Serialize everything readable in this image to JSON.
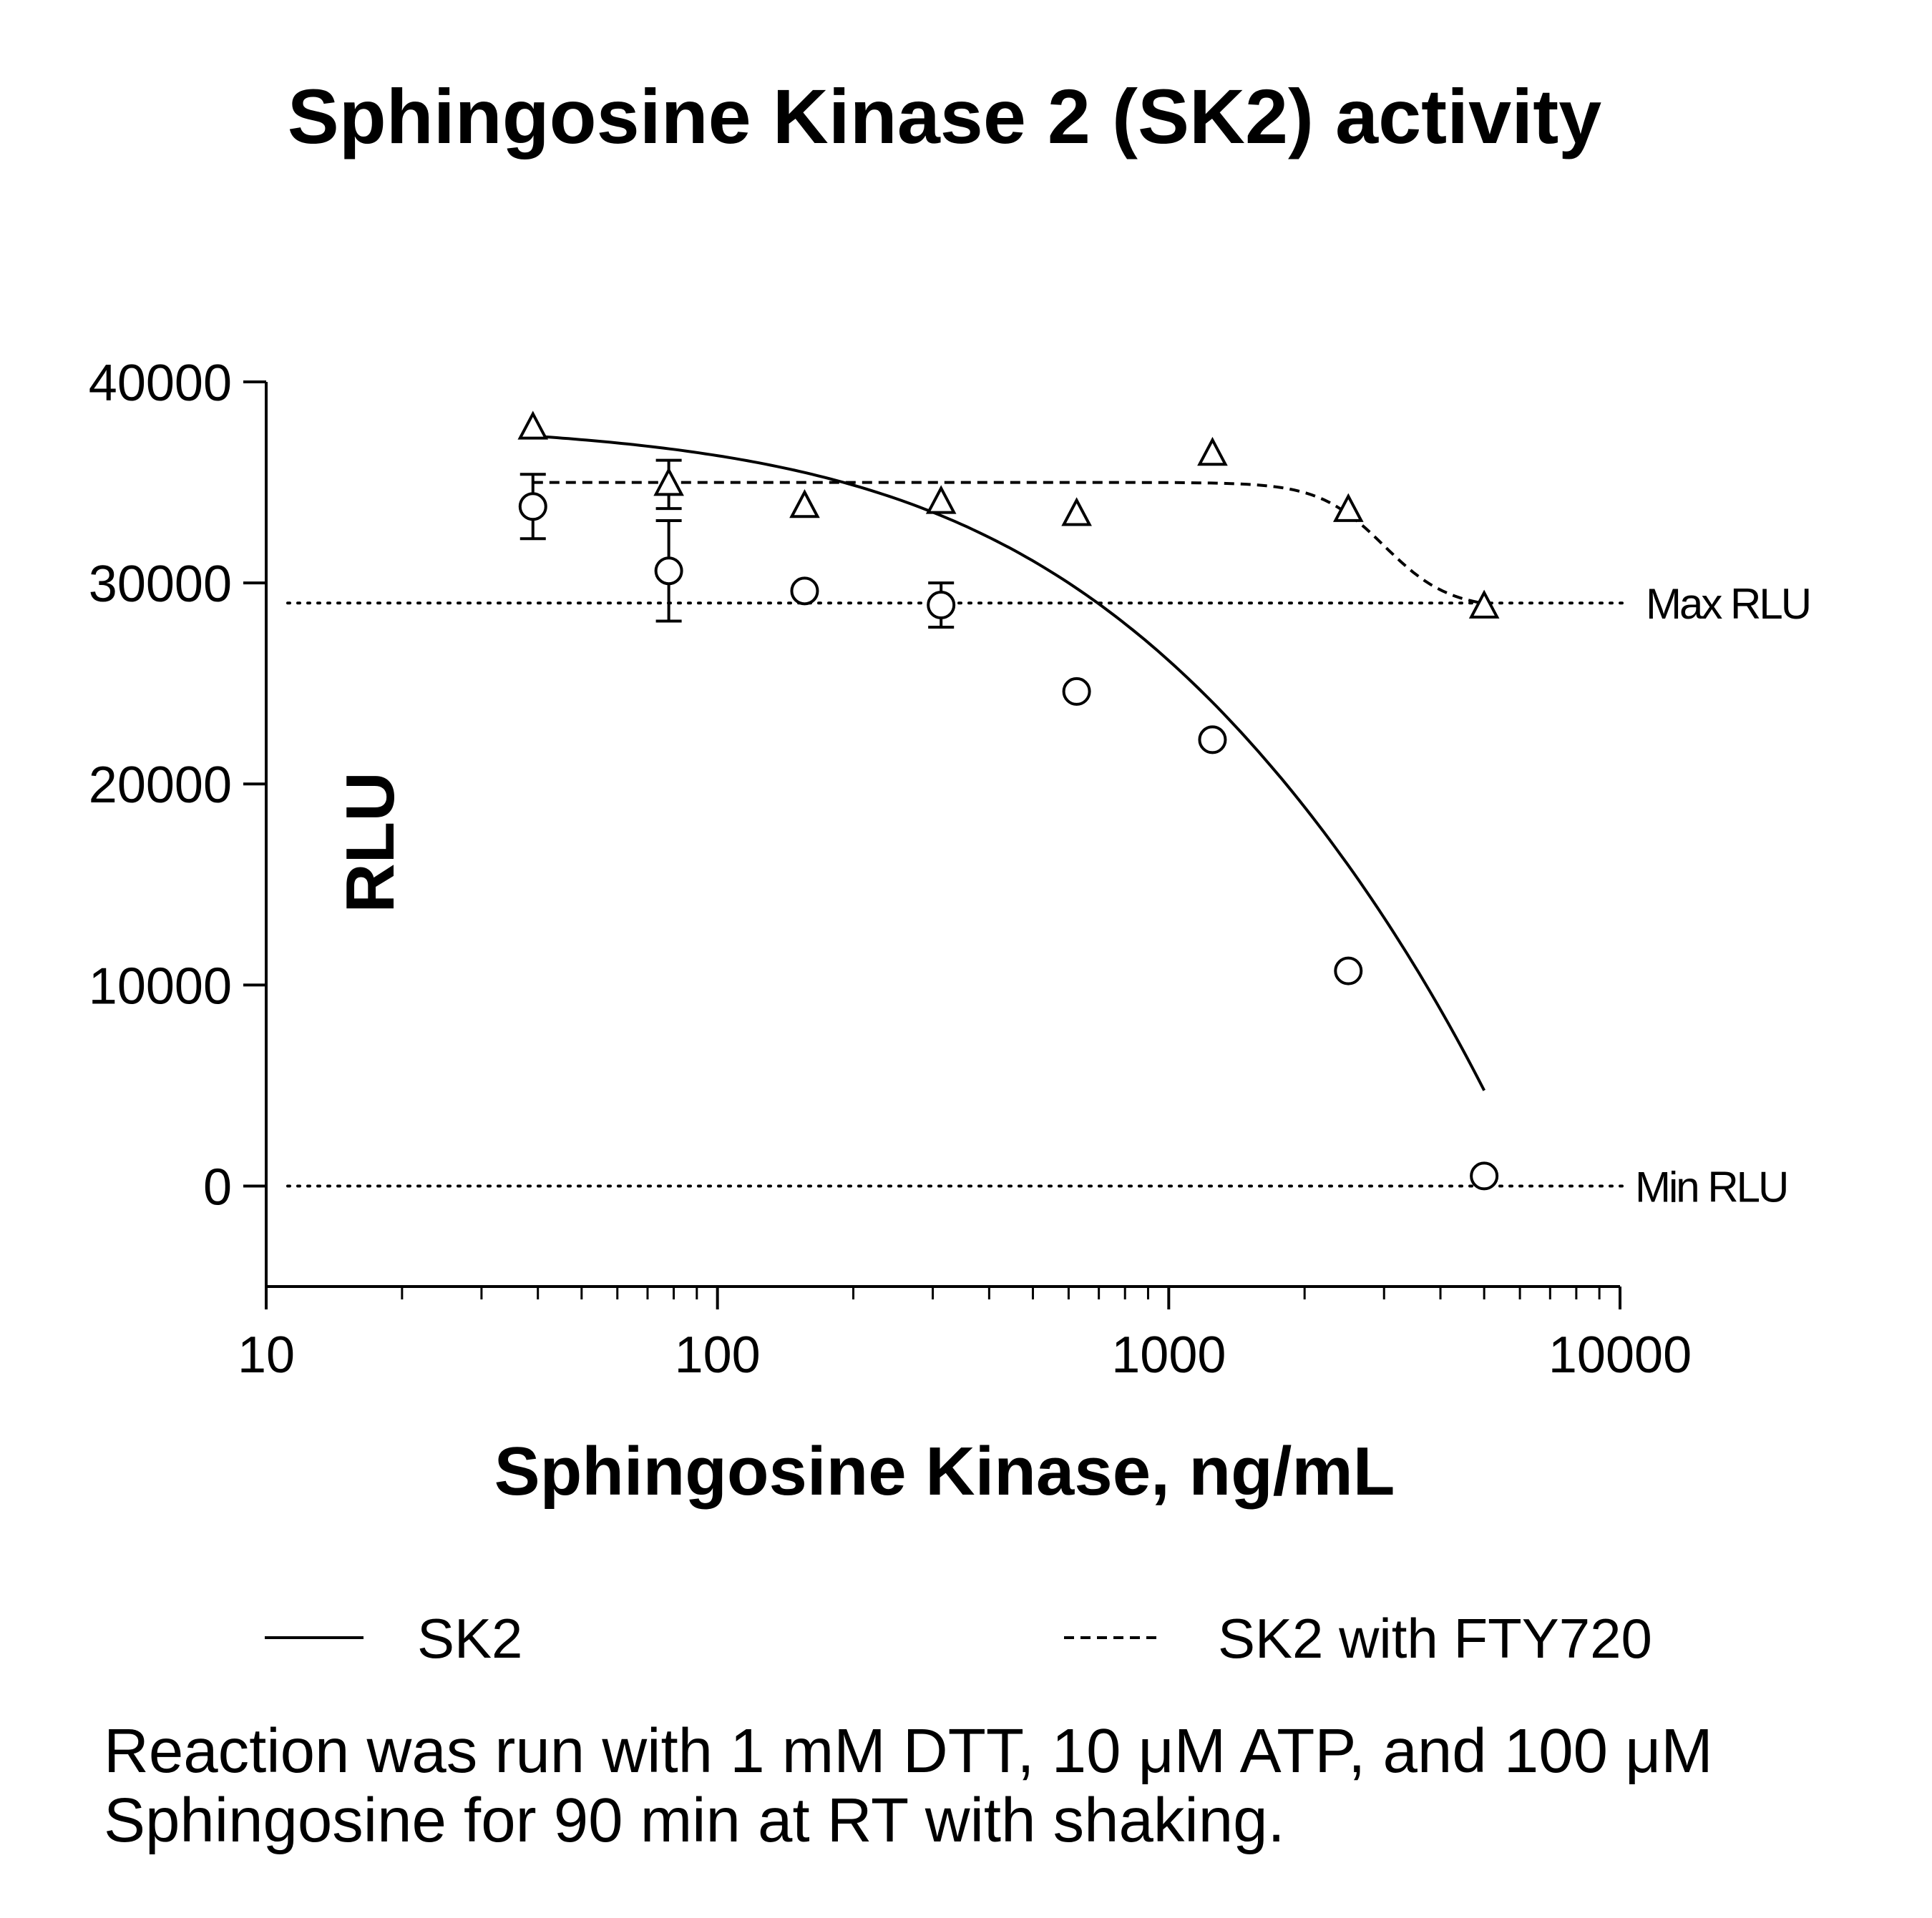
{
  "chart_data": {
    "type": "scatter",
    "title": "Sphingosine Kinase 2 (SK2) activity",
    "xlabel": "Sphingosine Kinase, ng/mL",
    "ylabel": "RLU",
    "x_scale": "log",
    "xlim": [
      10,
      10000
    ],
    "ylim": [
      -5000,
      40000
    ],
    "x_ticks": [
      10,
      100,
      1000,
      10000
    ],
    "x_tick_labels": [
      "10",
      "100",
      "1000",
      "10000"
    ],
    "y_ticks": [
      0,
      10000,
      20000,
      30000,
      40000
    ],
    "y_tick_labels": [
      "0",
      "10000",
      "20000",
      "30000",
      "40000"
    ],
    "grid": false,
    "legend_position": "bottom",
    "series": [
      {
        "name": "SK2",
        "marker": "circle",
        "line_style": "solid",
        "x": [
          39,
          78,
          156,
          313,
          625,
          1250,
          2500,
          5000
        ],
        "y": [
          33800,
          30600,
          29600,
          28900,
          24600,
          22200,
          10700,
          500
        ],
        "error": [
          1600,
          2500,
          0,
          1100,
          0,
          0,
          0,
          0
        ]
      },
      {
        "name": "SK2 with FTY720",
        "marker": "triangle",
        "line_style": "dashed",
        "x": [
          39,
          78,
          156,
          313,
          625,
          1250,
          2500,
          5000
        ],
        "y": [
          37700,
          34900,
          33800,
          34000,
          33400,
          36400,
          33600,
          28800
        ],
        "error": [
          0,
          1200,
          0,
          0,
          0,
          0,
          0,
          0
        ]
      }
    ],
    "reference_lines": [
      {
        "label": "Max RLU",
        "y": 29000,
        "style": "dotted"
      },
      {
        "label": "Min RLU",
        "y": 0,
        "style": "dotted"
      }
    ]
  },
  "note": {
    "line1": "Reaction was run with 1 mM  DTT, 10 μM  ATP, and 100 μM",
    "line2": "Sphingosine for 90 min at RT with shaking."
  }
}
